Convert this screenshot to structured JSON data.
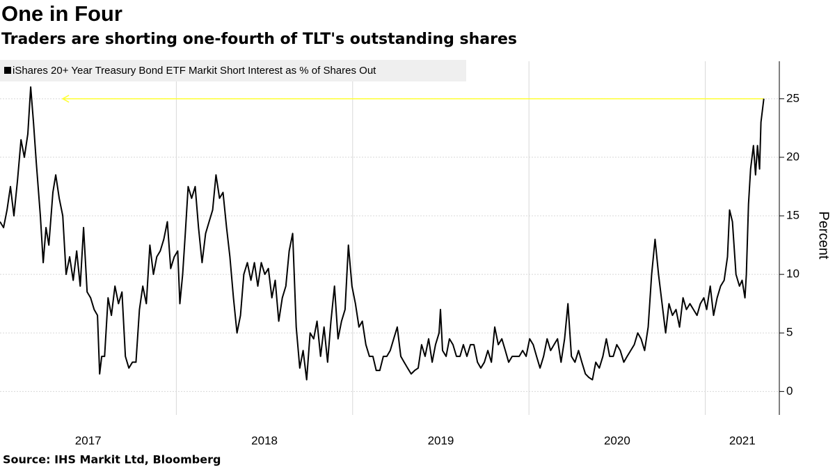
{
  "chart_data": {
    "type": "line",
    "title": "One in Four",
    "subtitle": "Traders are shorting one-fourth of TLT's outstanding shares",
    "source": "Source: IHS Markit Ltd, Bloomberg",
    "y_label": "Percent",
    "legend": "top-left",
    "grid": true,
    "xlim": [
      2017.0,
      2021.42
    ],
    "xticks": [
      2017,
      2018,
      2019,
      2020,
      2021
    ],
    "ylim": [
      -2,
      28.2
    ],
    "yticks": [
      0,
      5,
      10,
      15,
      20,
      25
    ],
    "reference_line": {
      "value": 25,
      "color": "#ffff33"
    },
    "x": [
      2017.0,
      2017.02,
      2017.04,
      2017.059,
      2017.079,
      2017.099,
      2017.119,
      2017.138,
      2017.158,
      2017.174,
      2017.19,
      2017.206,
      2017.229,
      2017.245,
      2017.261,
      2017.277,
      2017.3,
      2017.316,
      2017.336,
      2017.356,
      2017.375,
      2017.395,
      2017.415,
      2017.435,
      2017.455,
      2017.474,
      2017.494,
      2017.514,
      2017.534,
      2017.553,
      2017.565,
      2017.577,
      2017.593,
      2017.613,
      2017.632,
      2017.652,
      2017.672,
      2017.692,
      2017.711,
      2017.731,
      2017.751,
      2017.771,
      2017.791,
      2017.81,
      2017.83,
      2017.85,
      2017.87,
      2017.889,
      2017.909,
      2017.929,
      2017.949,
      2017.968,
      2017.988,
      2018.008,
      2018.02,
      2018.036,
      2018.051,
      2018.067,
      2018.087,
      2018.107,
      2018.126,
      2018.146,
      2018.166,
      2018.186,
      2018.206,
      2018.225,
      2018.245,
      2018.265,
      2018.285,
      2018.304,
      2018.324,
      2018.344,
      2018.364,
      2018.383,
      2018.403,
      2018.423,
      2018.443,
      2018.462,
      2018.482,
      2018.502,
      2018.522,
      2018.542,
      2018.561,
      2018.581,
      2018.601,
      2018.621,
      2018.64,
      2018.66,
      2018.68,
      2018.7,
      2018.719,
      2018.739,
      2018.759,
      2018.779,
      2018.798,
      2018.818,
      2018.838,
      2018.858,
      2018.877,
      2018.897,
      2018.917,
      2018.937,
      2018.957,
      2018.976,
      2018.996,
      2019.016,
      2019.036,
      2019.055,
      2019.075,
      2019.095,
      2019.115,
      2019.134,
      2019.154,
      2019.174,
      2019.194,
      2019.213,
      2019.233,
      2019.253,
      2019.273,
      2019.292,
      2019.312,
      2019.332,
      2019.352,
      2019.372,
      2019.391,
      2019.411,
      2019.431,
      2019.451,
      2019.47,
      2019.49,
      2019.498,
      2019.51,
      2019.53,
      2019.549,
      2019.569,
      2019.589,
      2019.609,
      2019.628,
      2019.648,
      2019.668,
      2019.688,
      2019.708,
      2019.727,
      2019.747,
      2019.767,
      2019.787,
      2019.806,
      2019.826,
      2019.846,
      2019.866,
      2019.885,
      2019.905,
      2019.925,
      2019.945,
      2019.964,
      2019.984,
      2020.004,
      2020.024,
      2020.043,
      2020.063,
      2020.083,
      2020.103,
      2020.123,
      2020.142,
      2020.162,
      2020.182,
      2020.202,
      2020.221,
      2020.241,
      2020.261,
      2020.281,
      2020.3,
      2020.32,
      2020.34,
      2020.36,
      2020.379,
      2020.399,
      2020.419,
      2020.439,
      2020.458,
      2020.478,
      2020.498,
      2020.518,
      2020.538,
      2020.557,
      2020.577,
      2020.597,
      2020.617,
      2020.636,
      2020.656,
      2020.676,
      2020.696,
      2020.715,
      2020.735,
      2020.755,
      2020.775,
      2020.794,
      2020.814,
      2020.834,
      2020.854,
      2020.874,
      2020.893,
      2020.913,
      2020.933,
      2020.953,
      2020.972,
      2020.992,
      2021.008,
      2021.028,
      2021.047,
      2021.067,
      2021.087,
      2021.107,
      2021.126,
      2021.138,
      2021.154,
      2021.174,
      2021.194,
      2021.209,
      2021.225,
      2021.233,
      2021.245,
      2021.257,
      2021.273,
      2021.285,
      2021.296,
      2021.308,
      2021.316,
      2021.332
    ],
    "series": [
      {
        "name": "iShares 20+ Year Treasury Bond ETF Markit Short Interest as % of Shares Out",
        "color": "#000000",
        "values": [
          14.5,
          14,
          15.5,
          17.5,
          15,
          18,
          21.5,
          20,
          22,
          26,
          23,
          19.5,
          15,
          11,
          14,
          12.5,
          17,
          18.5,
          16.5,
          15,
          10,
          11.5,
          9.5,
          12,
          9,
          14,
          8.5,
          8,
          7,
          6.5,
          1.5,
          3,
          3,
          8,
          6.5,
          9,
          7.5,
          8.5,
          3,
          2,
          2.5,
          2.5,
          7,
          9,
          7.5,
          12.5,
          10,
          11.5,
          12,
          13,
          14.5,
          10.5,
          11.5,
          12,
          7.5,
          10,
          13.5,
          17.5,
          16.5,
          17.5,
          14,
          11,
          13.5,
          14.5,
          15.5,
          18.5,
          16.5,
          17,
          14,
          11.5,
          8,
          5,
          6.5,
          10,
          11,
          9.5,
          11,
          9,
          11,
          10,
          10.5,
          8,
          9.5,
          6,
          8,
          9,
          12,
          13.5,
          5.5,
          2,
          3.5,
          1,
          5,
          4.5,
          6,
          3,
          5.5,
          2.5,
          6,
          9,
          4.5,
          6,
          7,
          12.5,
          9,
          7.5,
          5.5,
          6,
          4,
          3,
          3,
          1.8,
          1.8,
          3,
          3,
          3.5,
          4.5,
          5.5,
          3,
          2.5,
          2,
          1.5,
          1.8,
          2,
          4,
          3,
          4.5,
          2.5,
          4,
          5,
          7,
          3.5,
          3,
          4.5,
          4,
          3,
          3,
          4,
          3,
          4,
          4,
          2.5,
          2,
          2.5,
          3.5,
          2.5,
          5.5,
          4,
          4.5,
          3.5,
          2.5,
          3,
          3,
          3,
          3.5,
          3,
          4.5,
          4,
          3,
          2,
          3,
          4.5,
          3.5,
          4,
          4.5,
          2.5,
          4.5,
          7.5,
          3,
          2.5,
          3.5,
          2.5,
          1.5,
          1.2,
          1,
          2.5,
          2,
          3,
          4.5,
          3,
          3,
          4,
          3.5,
          2.5,
          3,
          3.5,
          4,
          5,
          4.5,
          3.5,
          5.5,
          10,
          13,
          10,
          7.5,
          5,
          7.5,
          6.5,
          7,
          5.5,
          8,
          7,
          7.5,
          7,
          6.5,
          7.5,
          8,
          7,
          9,
          6.5,
          8,
          9,
          9.5,
          11.5,
          15.5,
          14.5,
          10,
          9,
          9.5,
          8,
          10,
          16,
          19,
          21,
          18.5,
          21,
          19,
          23,
          25
        ]
      }
    ]
  }
}
